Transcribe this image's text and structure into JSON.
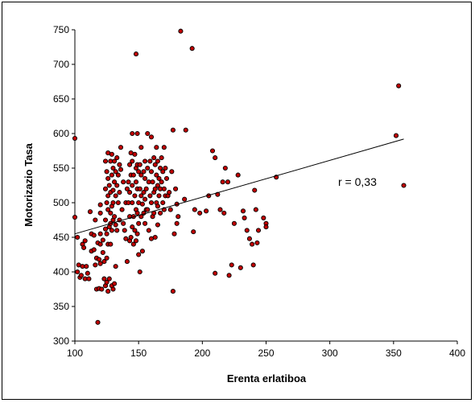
{
  "chart_data": {
    "type": "scatter",
    "xlabel": "Erenta erlatiboa",
    "ylabel": "Motorizazio Tasa",
    "xlim": [
      100,
      400
    ],
    "ylim": [
      300,
      750
    ],
    "x_ticks": [
      "100",
      "150",
      "200",
      "250",
      "300",
      "350",
      "400"
    ],
    "y_ticks": [
      "300",
      "350",
      "400",
      "450",
      "500",
      "550",
      "600",
      "650",
      "700",
      "750"
    ],
    "grid": false,
    "legend": "none",
    "annotation": "r = 0,33",
    "marker_color": "#c00000",
    "marker_edge": "#000000",
    "trendline": {
      "x": [
        100,
        358
      ],
      "y": [
        455,
        592
      ]
    },
    "points": [
      [
        100,
        593
      ],
      [
        100,
        479
      ],
      [
        102,
        450
      ],
      [
        102,
        400
      ],
      [
        103,
        410
      ],
      [
        104,
        392
      ],
      [
        105,
        395
      ],
      [
        106,
        440
      ],
      [
        106,
        408
      ],
      [
        107,
        435
      ],
      [
        108,
        390
      ],
      [
        108,
        445
      ],
      [
        109,
        408
      ],
      [
        110,
        398
      ],
      [
        111,
        390
      ],
      [
        112,
        487
      ],
      [
        113,
        455
      ],
      [
        113,
        430
      ],
      [
        115,
        453
      ],
      [
        115,
        432
      ],
      [
        116,
        475
      ],
      [
        116,
        410
      ],
      [
        117,
        375
      ],
      [
        117,
        420
      ],
      [
        118,
        327
      ],
      [
        118,
        442
      ],
      [
        119,
        418
      ],
      [
        119,
        376
      ],
      [
        120,
        497
      ],
      [
        120,
        485
      ],
      [
        120,
        455
      ],
      [
        120,
        440
      ],
      [
        120,
        412
      ],
      [
        121,
        375
      ],
      [
        122,
        446
      ],
      [
        122,
        428
      ],
      [
        123,
        415
      ],
      [
        123,
        390
      ],
      [
        124,
        560
      ],
      [
        124,
        520
      ],
      [
        124,
        475
      ],
      [
        124,
        462
      ],
      [
        124,
        380
      ],
      [
        125,
        545
      ],
      [
        125,
        500
      ],
      [
        125,
        455
      ],
      [
        125,
        420
      ],
      [
        125,
        385
      ],
      [
        126,
        572
      ],
      [
        126,
        535
      ],
      [
        126,
        510
      ],
      [
        126,
        490
      ],
      [
        126,
        440
      ],
      [
        126,
        372
      ],
      [
        127,
        525
      ],
      [
        127,
        465
      ],
      [
        127,
        390
      ],
      [
        128,
        560
      ],
      [
        128,
        515
      ],
      [
        128,
        485
      ],
      [
        128,
        470
      ],
      [
        128,
        440
      ],
      [
        129,
        570
      ],
      [
        129,
        540
      ],
      [
        129,
        495
      ],
      [
        129,
        460
      ],
      [
        129,
        380
      ],
      [
        130,
        550
      ],
      [
        130,
        518
      ],
      [
        130,
        500
      ],
      [
        130,
        475
      ],
      [
        130,
        375
      ],
      [
        131,
        560
      ],
      [
        131,
        530
      ],
      [
        131,
        480
      ],
      [
        131,
        383
      ],
      [
        132,
        545
      ],
      [
        132,
        510
      ],
      [
        132,
        468
      ],
      [
        132,
        408
      ],
      [
        133,
        565
      ],
      [
        133,
        525
      ],
      [
        133,
        460
      ],
      [
        134,
        540
      ],
      [
        134,
        500
      ],
      [
        135,
        555
      ],
      [
        135,
        515
      ],
      [
        135,
        475
      ],
      [
        136,
        580
      ],
      [
        136,
        548
      ],
      [
        137,
        490
      ],
      [
        138,
        530
      ],
      [
        138,
        470
      ],
      [
        139,
        460
      ],
      [
        140,
        500
      ],
      [
        140,
        448
      ],
      [
        141,
        520
      ],
      [
        141,
        415
      ],
      [
        142,
        530
      ],
      [
        142,
        500
      ],
      [
        143,
        555
      ],
      [
        143,
        515
      ],
      [
        143,
        480
      ],
      [
        143,
        445
      ],
      [
        144,
        572
      ],
      [
        144,
        540
      ],
      [
        144,
        450
      ],
      [
        145,
        600
      ],
      [
        145,
        560
      ],
      [
        145,
        525
      ],
      [
        145,
        500
      ],
      [
        145,
        465
      ],
      [
        146,
        540
      ],
      [
        146,
        480
      ],
      [
        146,
        440
      ],
      [
        147,
        570
      ],
      [
        147,
        510
      ],
      [
        147,
        460
      ],
      [
        148,
        715
      ],
      [
        148,
        550
      ],
      [
        148,
        530
      ],
      [
        148,
        490
      ],
      [
        148,
        445
      ],
      [
        149,
        600
      ],
      [
        149,
        555
      ],
      [
        149,
        520
      ],
      [
        149,
        485
      ],
      [
        149,
        455
      ],
      [
        150,
        545
      ],
      [
        150,
        500
      ],
      [
        150,
        470
      ],
      [
        150,
        425
      ],
      [
        151,
        555
      ],
      [
        151,
        520
      ],
      [
        151,
        400
      ],
      [
        152,
        580
      ],
      [
        152,
        540
      ],
      [
        152,
        510
      ],
      [
        152,
        480
      ],
      [
        153,
        430
      ],
      [
        153,
        498
      ],
      [
        154,
        545
      ],
      [
        154,
        515
      ],
      [
        154,
        485
      ],
      [
        155,
        560
      ],
      [
        155,
        535
      ],
      [
        155,
        505
      ],
      [
        155,
        470
      ],
      [
        156,
        520
      ],
      [
        156,
        490
      ],
      [
        157,
        600
      ],
      [
        157,
        550
      ],
      [
        157,
        490
      ],
      [
        158,
        530
      ],
      [
        158,
        460
      ],
      [
        159,
        560
      ],
      [
        159,
        510
      ],
      [
        160,
        595
      ],
      [
        160,
        545
      ],
      [
        160,
        500
      ],
      [
        160,
        448
      ],
      [
        161,
        530
      ],
      [
        161,
        480
      ],
      [
        162,
        565
      ],
      [
        162,
        515
      ],
      [
        162,
        485
      ],
      [
        163,
        555
      ],
      [
        163,
        520
      ],
      [
        163,
        450
      ],
      [
        164,
        580
      ],
      [
        164,
        540
      ],
      [
        164,
        500
      ],
      [
        165,
        560
      ],
      [
        165,
        525
      ],
      [
        165,
        495
      ],
      [
        165,
        468
      ],
      [
        166,
        535
      ],
      [
        166,
        510
      ],
      [
        167,
        550
      ],
      [
        167,
        520
      ],
      [
        167,
        485
      ],
      [
        168,
        565
      ],
      [
        168,
        530
      ],
      [
        169,
        545
      ],
      [
        169,
        500
      ],
      [
        170,
        580
      ],
      [
        170,
        520
      ],
      [
        170,
        490
      ],
      [
        171,
        550
      ],
      [
        171,
        510
      ],
      [
        172,
        535
      ],
      [
        173,
        510
      ],
      [
        174,
        515
      ],
      [
        175,
        490
      ],
      [
        176,
        545
      ],
      [
        177,
        605
      ],
      [
        177,
        372
      ],
      [
        178,
        455
      ],
      [
        179,
        520
      ],
      [
        180,
        498
      ],
      [
        180,
        470
      ],
      [
        181,
        480
      ],
      [
        183,
        748
      ],
      [
        186,
        505
      ],
      [
        187,
        605
      ],
      [
        192,
        723
      ],
      [
        193,
        458
      ],
      [
        194,
        490
      ],
      [
        198,
        485
      ],
      [
        203,
        488
      ],
      [
        205,
        510
      ],
      [
        208,
        575
      ],
      [
        210,
        565
      ],
      [
        210,
        398
      ],
      [
        212,
        512
      ],
      [
        214,
        490
      ],
      [
        216,
        530
      ],
      [
        217,
        485
      ],
      [
        218,
        550
      ],
      [
        220,
        530
      ],
      [
        221,
        395
      ],
      [
        223,
        410
      ],
      [
        225,
        470
      ],
      [
        228,
        540
      ],
      [
        230,
        406
      ],
      [
        232,
        488
      ],
      [
        233,
        478
      ],
      [
        235,
        460
      ],
      [
        237,
        448
      ],
      [
        239,
        440
      ],
      [
        240,
        410
      ],
      [
        241,
        518
      ],
      [
        242,
        490
      ],
      [
        243,
        442
      ],
      [
        244,
        460
      ],
      [
        248,
        478
      ],
      [
        250,
        470
      ],
      [
        250,
        465
      ],
      [
        258,
        537
      ],
      [
        352,
        597
      ],
      [
        354,
        669
      ],
      [
        358,
        525
      ]
    ]
  }
}
